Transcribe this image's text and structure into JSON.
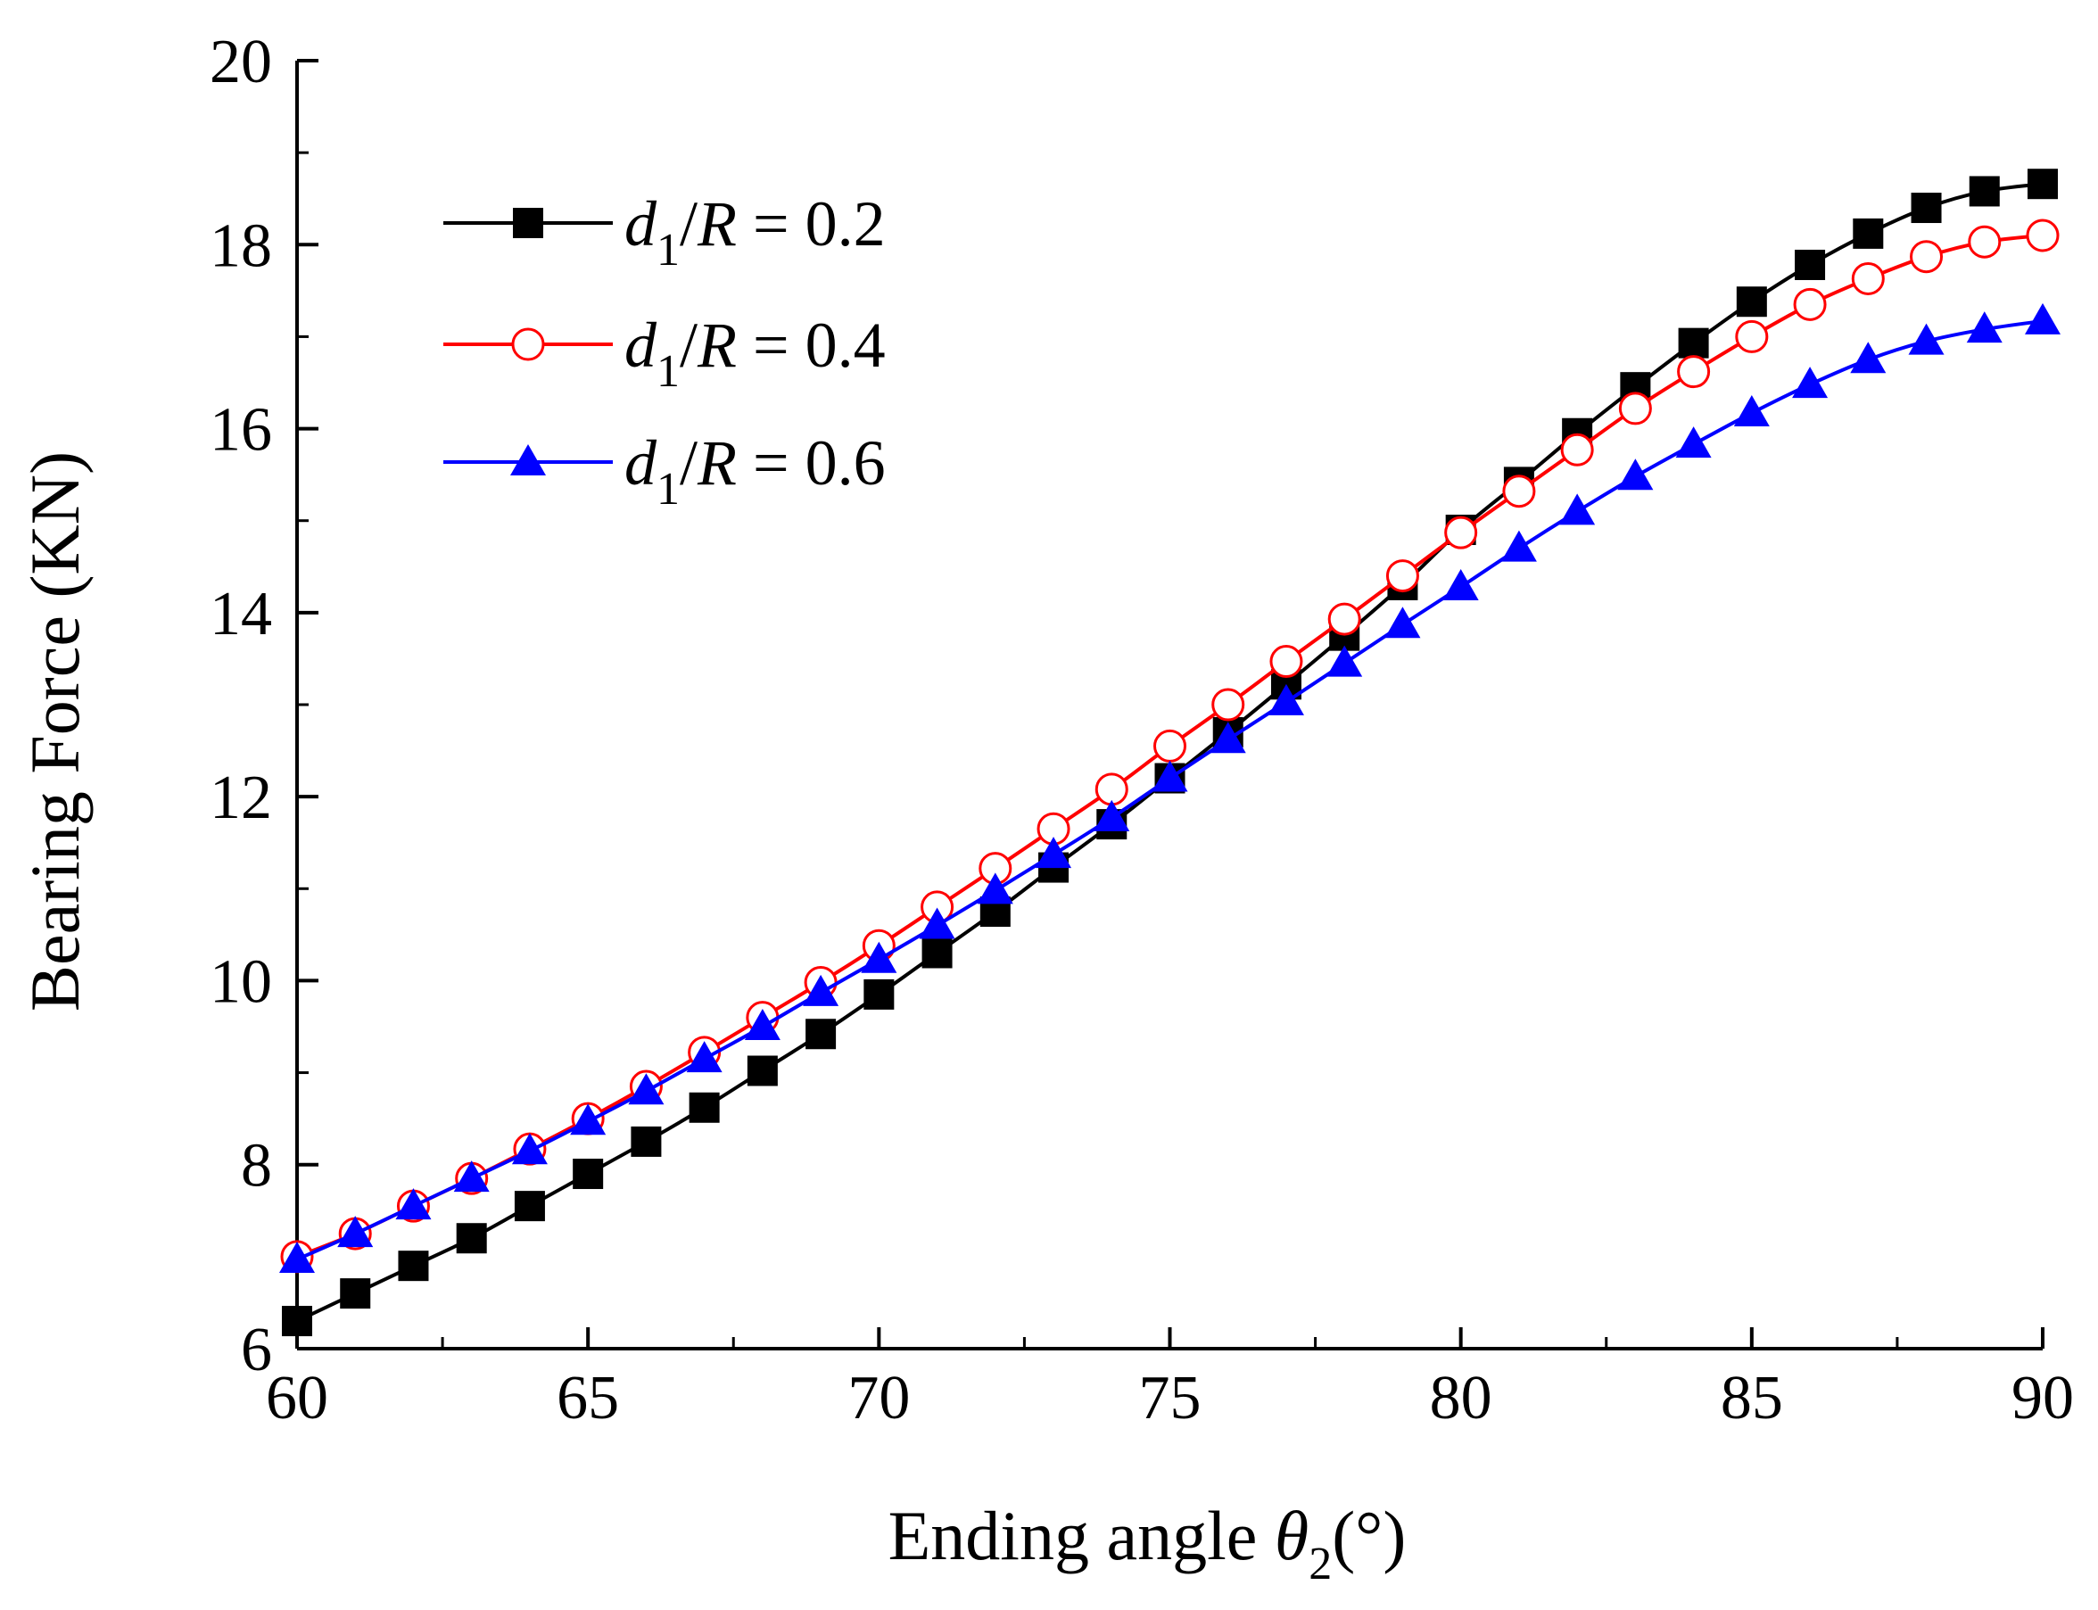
{
  "chart_data": {
    "type": "line",
    "title": "",
    "xlabel": {
      "prefix": "Ending angle ",
      "symbol": "θ",
      "subscript": "2",
      "suffix": "(°)"
    },
    "ylabel": "Bearing Force (KN)",
    "xlim": [
      60,
      90
    ],
    "ylim": [
      6,
      20
    ],
    "x_ticks": [
      60,
      65,
      70,
      75,
      80,
      85,
      90
    ],
    "y_ticks": [
      6,
      8,
      10,
      12,
      14,
      16,
      18,
      20
    ],
    "x_minor_step": 2.5,
    "y_minor_step": 1,
    "grid": false,
    "legend_position": "top-left",
    "x": [
      60,
      61,
      62,
      63,
      64,
      65,
      66,
      67,
      68,
      69,
      70,
      71,
      72,
      73,
      74,
      75,
      76,
      77,
      78,
      79,
      80,
      81,
      82,
      83,
      84,
      85,
      86,
      87,
      88,
      89,
      90
    ],
    "series": [
      {
        "name": "d1/R = 0.2",
        "legend": {
          "var": "d",
          "sub": "1",
          "mid": "/",
          "var2": "R",
          "rest": " = 0.2"
        },
        "color": "#000000",
        "marker": "square-filled",
        "values": [
          6.3,
          6.6,
          6.9,
          7.2,
          7.55,
          7.9,
          8.25,
          8.62,
          9.02,
          9.42,
          9.85,
          10.3,
          10.75,
          11.23,
          11.7,
          12.2,
          12.7,
          13.22,
          13.75,
          14.3,
          14.9,
          15.42,
          15.95,
          16.45,
          16.93,
          17.38,
          17.78,
          18.12,
          18.4,
          18.58,
          18.66
        ]
      },
      {
        "name": "d1/R = 0.4",
        "legend": {
          "var": "d",
          "sub": "1",
          "mid": "/",
          "var2": "R",
          "rest": " = 0.4"
        },
        "color": "#ff0000",
        "marker": "circle-open",
        "values": [
          7.0,
          7.25,
          7.55,
          7.85,
          8.17,
          8.5,
          8.85,
          9.22,
          9.6,
          9.98,
          10.38,
          10.8,
          11.22,
          11.65,
          12.08,
          12.55,
          13.0,
          13.47,
          13.93,
          14.4,
          14.87,
          15.32,
          15.77,
          16.22,
          16.62,
          17.0,
          17.35,
          17.63,
          17.87,
          18.03,
          18.1
        ]
      },
      {
        "name": "d1/R = 0.6",
        "legend": {
          "var": "d",
          "sub": "1",
          "mid": "/",
          "var2": "R",
          "rest": " = 0.6"
        },
        "color": "#0000ff",
        "marker": "triangle-filled",
        "values": [
          6.97,
          7.25,
          7.55,
          7.85,
          8.15,
          8.47,
          8.8,
          9.15,
          9.5,
          9.87,
          10.23,
          10.6,
          10.98,
          11.37,
          11.77,
          12.2,
          12.62,
          13.03,
          13.45,
          13.87,
          14.28,
          14.7,
          15.1,
          15.48,
          15.83,
          16.17,
          16.48,
          16.75,
          16.95,
          17.08,
          17.17
        ]
      }
    ]
  }
}
